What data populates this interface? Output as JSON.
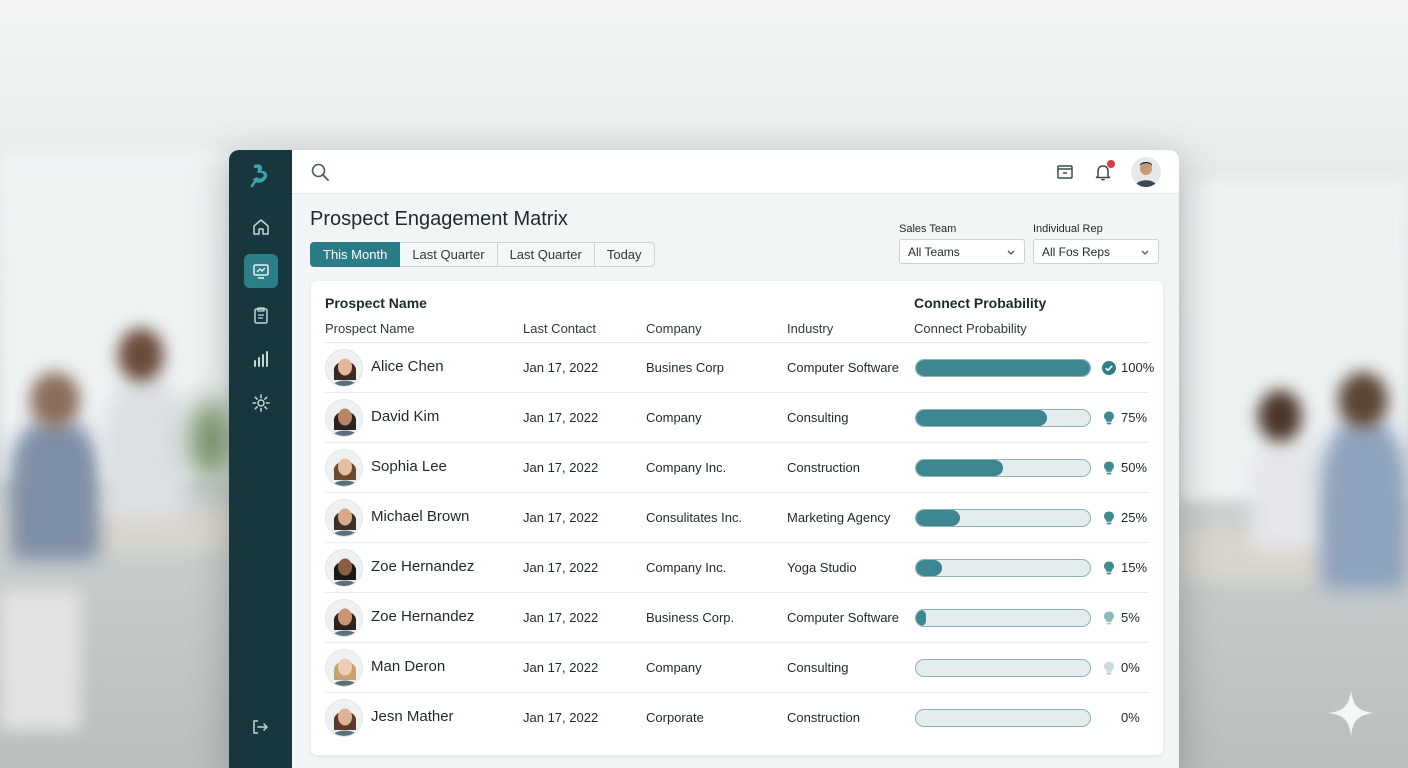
{
  "topbar": {
    "search_icon": "search-icon",
    "icons": [
      "inbox-icon",
      "bell-icon",
      "user-avatar"
    ]
  },
  "sidebar": {
    "items": [
      "home-icon",
      "engagement-icon",
      "clipboard-icon",
      "chart-bars-icon",
      "gear-icon"
    ],
    "active_index": 1,
    "logout_icon": "logout-icon"
  },
  "page": {
    "title": "Prospect Engagement Matrix",
    "tabs": [
      {
        "label": "This Month",
        "active": true
      },
      {
        "label": "Last Quarter",
        "active": false
      },
      {
        "label": "Last Quarter",
        "active": false
      },
      {
        "label": "Today",
        "active": false
      }
    ]
  },
  "filters": {
    "team_label": "Sales Team",
    "team_value": "All Teams",
    "rep_label": "Individual Rep",
    "rep_value": "All Fos Reps"
  },
  "table": {
    "group_headers": {
      "name": "Prospect Name",
      "probability": "Connect Probability"
    },
    "columns": {
      "name": "Prospect Name",
      "last_contact": "Last Contact",
      "company": "Company",
      "industry": "Industry",
      "probability": "Connect Probability"
    },
    "rows": [
      {
        "name": "Alice Chen",
        "last_contact": "Jan 17, 2022",
        "company": "Busines Corp",
        "industry": "Computer Software",
        "probability": 100,
        "prob_label": "100%",
        "icon": "check-circle-icon"
      },
      {
        "name": "David Kim",
        "last_contact": "Jan 17, 2022",
        "company": "Company",
        "industry": "Consulting",
        "probability": 75,
        "prob_label": "75%",
        "icon": "lightbulb-icon"
      },
      {
        "name": "Sophia Lee",
        "last_contact": "Jan 17, 2022",
        "company": "Company Inc.",
        "industry": "Construction",
        "probability": 50,
        "prob_label": "50%",
        "icon": "lightbulb-icon"
      },
      {
        "name": "Michael Brown",
        "last_contact": "Jan 17, 2022",
        "company": "Consulitates Inc.",
        "industry": "Marketing Agency",
        "probability": 25,
        "prob_label": "25%",
        "icon": "lightbulb-icon"
      },
      {
        "name": "Zoe Hernandez",
        "last_contact": "Jan 17, 2022",
        "company": "Company Inc.",
        "industry": "Yoga Studio",
        "probability": 15,
        "prob_label": "15%",
        "icon": "lightbulb-icon"
      },
      {
        "name": "Zoe Hernandez",
        "last_contact": "Jan 17, 2022",
        "company": "Business Corp.",
        "industry": "Computer Software",
        "probability": 5,
        "prob_label": "5%",
        "icon": "lightbulb-icon"
      },
      {
        "name": "Man Deron",
        "last_contact": "Jan 17, 2022",
        "company": "Company",
        "industry": "Consulting",
        "probability": 0,
        "prob_label": "0%",
        "icon": "lightbulb-icon"
      },
      {
        "name": "Jesn Mather",
        "last_contact": "Jan 17, 2022",
        "company": "Corporate",
        "industry": "Construction",
        "probability": 0,
        "prob_label": "0%",
        "icon": ""
      }
    ]
  },
  "colors": {
    "sidebar": "#17373d",
    "accent": "#2b7c86",
    "bar_fill": "#3c8790",
    "bar_track": "#e3eded"
  }
}
